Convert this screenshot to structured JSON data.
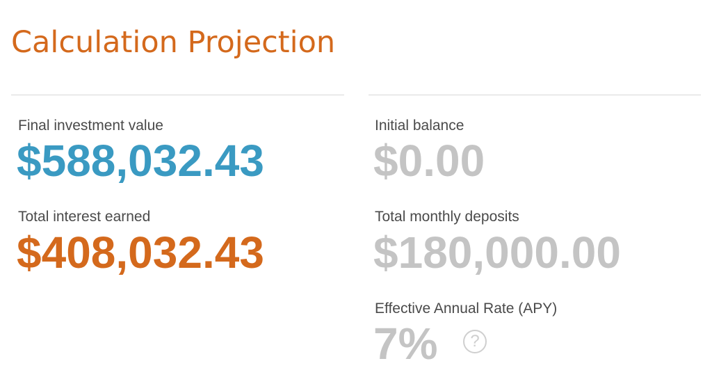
{
  "header": {
    "title": "Calculation Projection"
  },
  "results": {
    "final_value": {
      "label": "Final investment value",
      "value": "$588,032.43",
      "color": "#3a9ac2"
    },
    "total_interest": {
      "label": "Total interest earned",
      "value": "$408,032.43",
      "color": "#d4691c"
    },
    "initial_balance": {
      "label": "Initial balance",
      "value": "$0.00",
      "color": "#c4c4c4"
    },
    "total_deposits": {
      "label": "Total monthly deposits",
      "value": "$180,000.00",
      "color": "#c4c4c4"
    },
    "apy": {
      "label": "Effective Annual Rate (APY)",
      "value": "7%",
      "color": "#c4c4c4",
      "help_icon": "question-circle-icon",
      "help_glyph": "?"
    }
  },
  "colors": {
    "title": "#d4691c",
    "label": "#4a4a4a",
    "divider": "#d8d8d8"
  }
}
